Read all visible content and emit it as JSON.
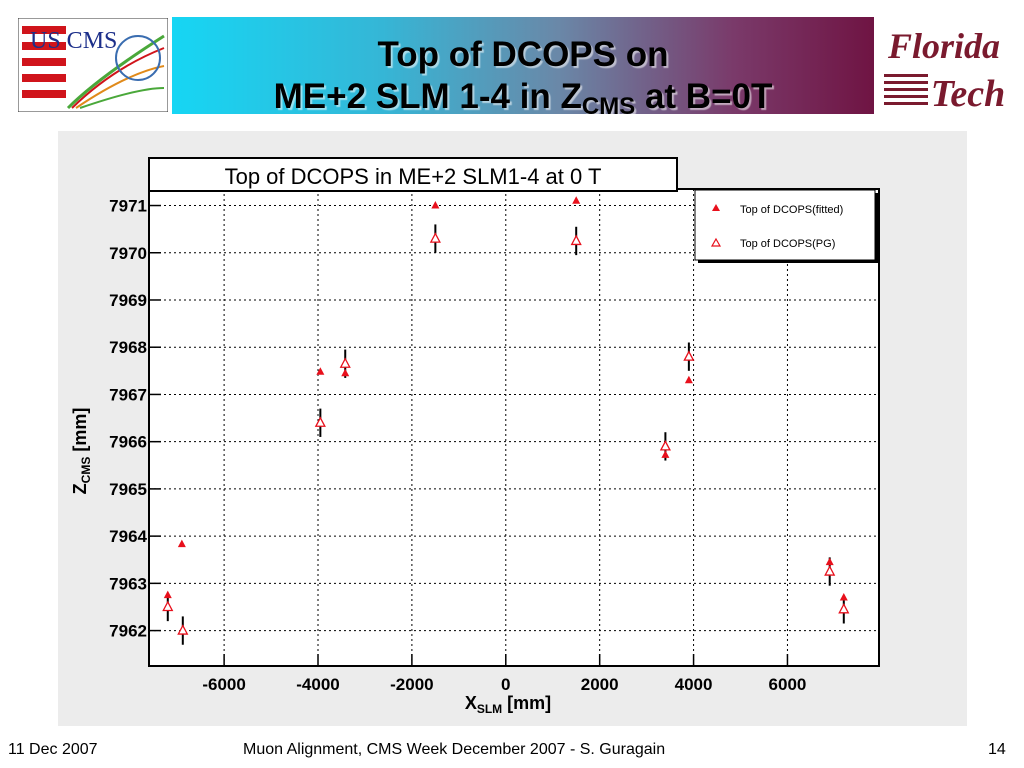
{
  "header": {
    "title_line1": "Top of DCOPS on",
    "title_line2_main": "ME+2 SLM 1-4 in Z",
    "title_line2_sub": "CMS",
    "title_line2_tail": " at B=0T",
    "left_logo_text": "US CMS",
    "right_logo_line1": "Florida",
    "right_logo_line2": "Tech"
  },
  "footer": {
    "date": "11 Dec 2007",
    "center": "Muon Alignment, CMS Week December 2007  - S. Guragain",
    "page": "14"
  },
  "colors": {
    "marker": "#e8101c",
    "error_bar": "#000000",
    "panel_bg": "#ececec",
    "banner_start": "#16d6f4",
    "banner_end": "#6f1443"
  },
  "chart_data": {
    "type": "scatter",
    "title": "Top of DCOPS in ME+2 SLM1-4 at 0 T",
    "xlabel_main": "X",
    "xlabel_sub": "SLM",
    "xlabel_unit": " [mm]",
    "ylabel_main": "Z",
    "ylabel_sub": "CMS",
    "ylabel_unit": " [mm]",
    "xlim": [
      -7600,
      7950
    ],
    "ylim": [
      7961.25,
      7971.35
    ],
    "xticks": [
      -6000,
      -4000,
      -2000,
      0,
      2000,
      4000,
      6000
    ],
    "xtick_labels": [
      "-6000",
      "-4000",
      "-2000",
      "0",
      "2000",
      "4000",
      "6000"
    ],
    "yticks": [
      7962,
      7963,
      7964,
      7965,
      7966,
      7967,
      7968,
      7969,
      7970,
      7971
    ],
    "ytick_labels": [
      "7962",
      "7963",
      "7964",
      "7965",
      "7966",
      "7967",
      "7968",
      "7969",
      "7970",
      "7971"
    ],
    "grid": true,
    "legend_position": "top-right",
    "series": [
      {
        "name": "Top of DCOPS(fitted)",
        "marker": "filled-triangle",
        "points": [
          {
            "x": -7200,
            "y": 7962.75
          },
          {
            "x": -6900,
            "y": 7963.83
          },
          {
            "x": -3950,
            "y": 7967.48
          },
          {
            "x": -3420,
            "y": 7967.45
          },
          {
            "x": -1500,
            "y": 7971.0
          },
          {
            "x": 1500,
            "y": 7971.1
          },
          {
            "x": 3400,
            "y": 7965.72
          },
          {
            "x": 3900,
            "y": 7967.3
          },
          {
            "x": 6900,
            "y": 7963.45
          },
          {
            "x": 7200,
            "y": 7962.7
          }
        ]
      },
      {
        "name": "Top of DCOPS(PG)",
        "marker": "open-triangle",
        "points": [
          {
            "x": -7200,
            "y": 7962.5,
            "err": 0.3
          },
          {
            "x": -6880,
            "y": 7962.0,
            "err": 0.3
          },
          {
            "x": -3950,
            "y": 7966.4,
            "err": 0.3
          },
          {
            "x": -3420,
            "y": 7967.65,
            "err": 0.3
          },
          {
            "x": -1500,
            "y": 7970.3,
            "err": 0.3
          },
          {
            "x": 1500,
            "y": 7970.25,
            "err": 0.3
          },
          {
            "x": 3400,
            "y": 7965.9,
            "err": 0.3
          },
          {
            "x": 3900,
            "y": 7967.8,
            "err": 0.3
          },
          {
            "x": 6900,
            "y": 7963.25,
            "err": 0.3
          },
          {
            "x": 7200,
            "y": 7962.45,
            "err": 0.3
          }
        ]
      }
    ]
  }
}
